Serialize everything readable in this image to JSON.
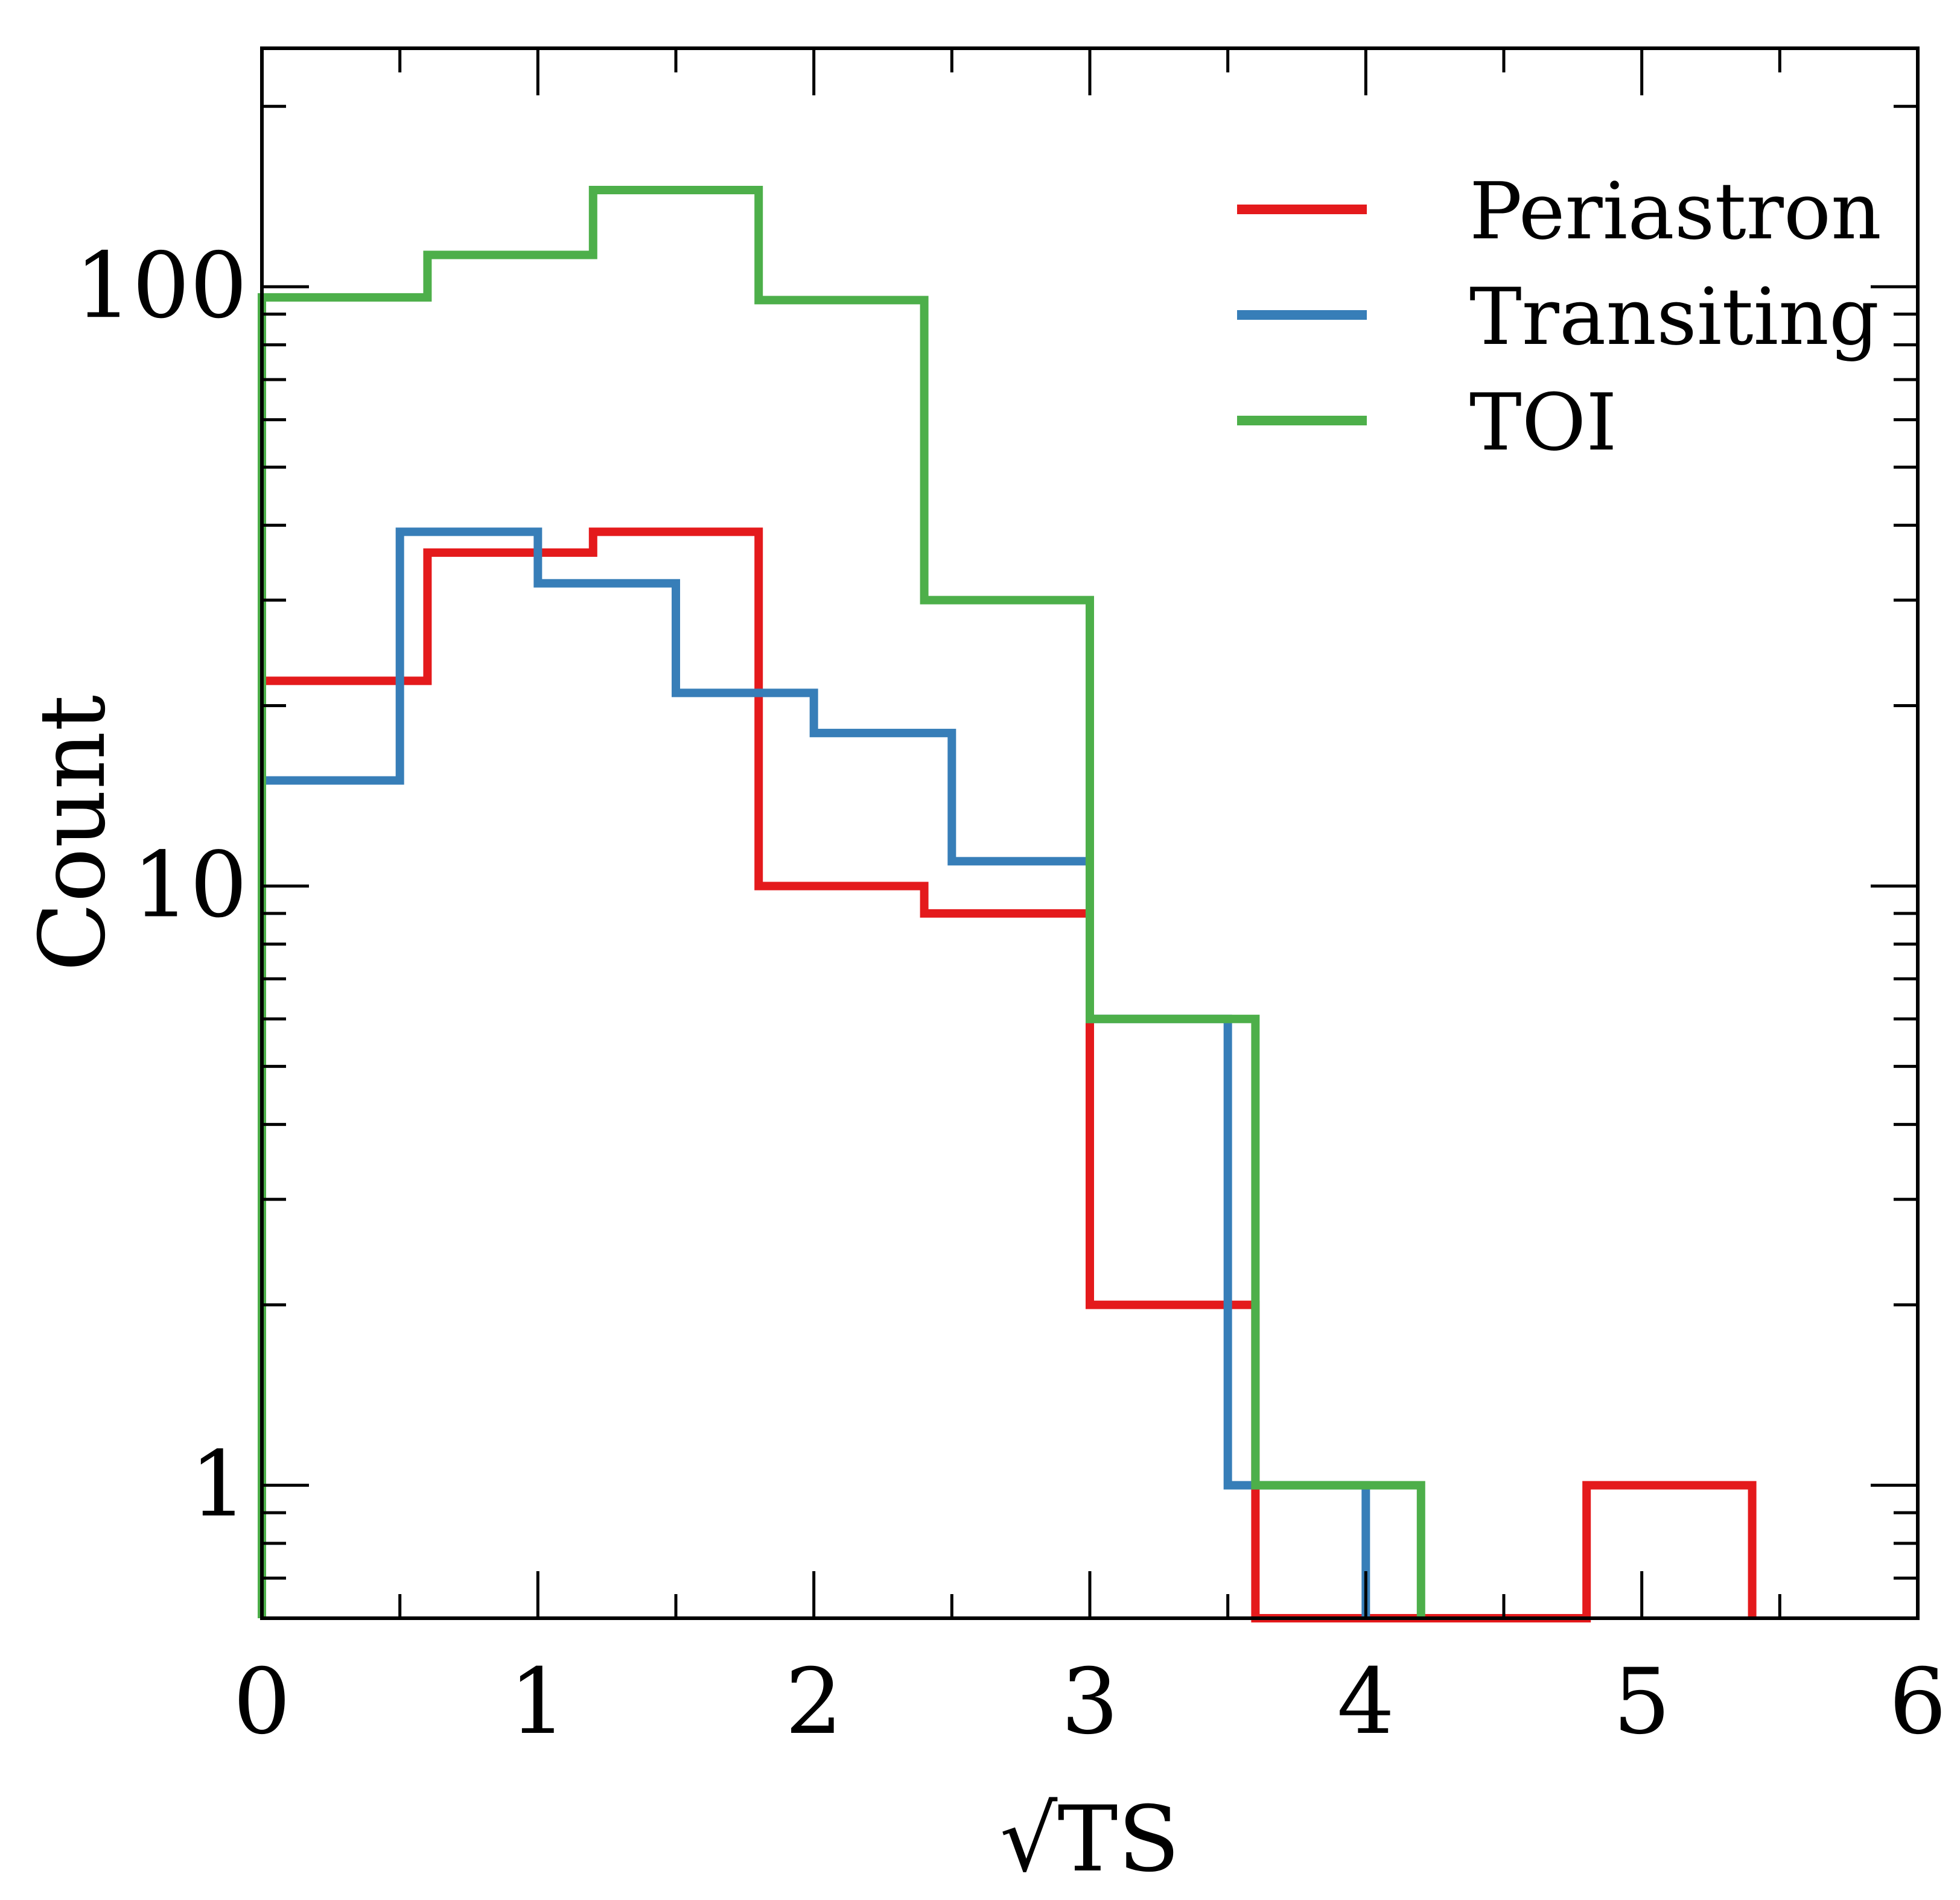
{
  "chart_data": {
    "type": "histogram-step",
    "xlabel": "√TS",
    "ylabel": "Count",
    "xlim": [
      0,
      6
    ],
    "ylim": [
      0.6,
      250
    ],
    "yscale": "log",
    "xticks": [
      0,
      1,
      2,
      3,
      4,
      5,
      6
    ],
    "xtick_labels": [
      "0",
      "1",
      "2",
      "3",
      "4",
      "5",
      "6"
    ],
    "yticks": [
      1,
      10,
      100
    ],
    "ytick_labels": [
      "1",
      "10",
      "100"
    ],
    "legend_position": "top-right",
    "series": [
      {
        "name": "Periastron",
        "color": "#e41a1c",
        "edges": [
          0,
          0.6,
          1.2,
          1.8,
          2.4,
          3.0,
          3.6,
          4.2,
          4.8,
          5.4
        ],
        "counts": [
          22,
          36,
          39,
          10,
          9,
          2,
          0,
          0,
          1
        ]
      },
      {
        "name": "Transiting",
        "color": "#377eb8",
        "edges": [
          0,
          0.5,
          1.0,
          1.5,
          2.0,
          2.5,
          3.0,
          3.5,
          4.0
        ],
        "counts": [
          15,
          39,
          32,
          21,
          18,
          11,
          6,
          1
        ]
      },
      {
        "name": "TOI",
        "color": "#4daf4a",
        "edges": [
          0,
          0.6,
          1.2,
          1.8,
          2.4,
          3.0,
          3.6,
          4.2
        ],
        "counts": [
          96,
          113,
          145,
          95,
          30,
          6,
          1
        ]
      }
    ]
  }
}
